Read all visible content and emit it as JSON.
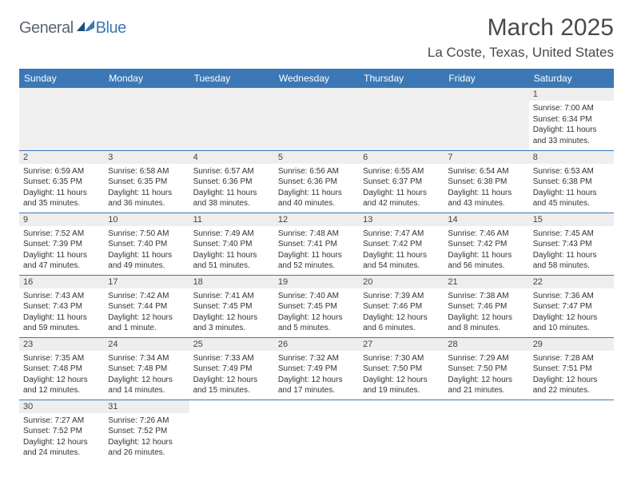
{
  "logo": {
    "text1": "General",
    "text2": "Blue"
  },
  "month_title": "March 2025",
  "location": "La Coste, Texas, United States",
  "day_headers": [
    "Sunday",
    "Monday",
    "Tuesday",
    "Wednesday",
    "Thursday",
    "Friday",
    "Saturday"
  ],
  "colors": {
    "header_bg": "#3b78b5",
    "header_fg": "#ffffff",
    "rule": "#3b78b5",
    "daynum_bg": "#eeeeee"
  },
  "weeks": [
    [
      null,
      null,
      null,
      null,
      null,
      null,
      {
        "n": "1",
        "sr": "Sunrise: 7:00 AM",
        "ss": "Sunset: 6:34 PM",
        "d1": "Daylight: 11 hours",
        "d2": "and 33 minutes."
      }
    ],
    [
      {
        "n": "2",
        "sr": "Sunrise: 6:59 AM",
        "ss": "Sunset: 6:35 PM",
        "d1": "Daylight: 11 hours",
        "d2": "and 35 minutes."
      },
      {
        "n": "3",
        "sr": "Sunrise: 6:58 AM",
        "ss": "Sunset: 6:35 PM",
        "d1": "Daylight: 11 hours",
        "d2": "and 36 minutes."
      },
      {
        "n": "4",
        "sr": "Sunrise: 6:57 AM",
        "ss": "Sunset: 6:36 PM",
        "d1": "Daylight: 11 hours",
        "d2": "and 38 minutes."
      },
      {
        "n": "5",
        "sr": "Sunrise: 6:56 AM",
        "ss": "Sunset: 6:36 PM",
        "d1": "Daylight: 11 hours",
        "d2": "and 40 minutes."
      },
      {
        "n": "6",
        "sr": "Sunrise: 6:55 AM",
        "ss": "Sunset: 6:37 PM",
        "d1": "Daylight: 11 hours",
        "d2": "and 42 minutes."
      },
      {
        "n": "7",
        "sr": "Sunrise: 6:54 AM",
        "ss": "Sunset: 6:38 PM",
        "d1": "Daylight: 11 hours",
        "d2": "and 43 minutes."
      },
      {
        "n": "8",
        "sr": "Sunrise: 6:53 AM",
        "ss": "Sunset: 6:38 PM",
        "d1": "Daylight: 11 hours",
        "d2": "and 45 minutes."
      }
    ],
    [
      {
        "n": "9",
        "sr": "Sunrise: 7:52 AM",
        "ss": "Sunset: 7:39 PM",
        "d1": "Daylight: 11 hours",
        "d2": "and 47 minutes."
      },
      {
        "n": "10",
        "sr": "Sunrise: 7:50 AM",
        "ss": "Sunset: 7:40 PM",
        "d1": "Daylight: 11 hours",
        "d2": "and 49 minutes."
      },
      {
        "n": "11",
        "sr": "Sunrise: 7:49 AM",
        "ss": "Sunset: 7:40 PM",
        "d1": "Daylight: 11 hours",
        "d2": "and 51 minutes."
      },
      {
        "n": "12",
        "sr": "Sunrise: 7:48 AM",
        "ss": "Sunset: 7:41 PM",
        "d1": "Daylight: 11 hours",
        "d2": "and 52 minutes."
      },
      {
        "n": "13",
        "sr": "Sunrise: 7:47 AM",
        "ss": "Sunset: 7:42 PM",
        "d1": "Daylight: 11 hours",
        "d2": "and 54 minutes."
      },
      {
        "n": "14",
        "sr": "Sunrise: 7:46 AM",
        "ss": "Sunset: 7:42 PM",
        "d1": "Daylight: 11 hours",
        "d2": "and 56 minutes."
      },
      {
        "n": "15",
        "sr": "Sunrise: 7:45 AM",
        "ss": "Sunset: 7:43 PM",
        "d1": "Daylight: 11 hours",
        "d2": "and 58 minutes."
      }
    ],
    [
      {
        "n": "16",
        "sr": "Sunrise: 7:43 AM",
        "ss": "Sunset: 7:43 PM",
        "d1": "Daylight: 11 hours",
        "d2": "and 59 minutes."
      },
      {
        "n": "17",
        "sr": "Sunrise: 7:42 AM",
        "ss": "Sunset: 7:44 PM",
        "d1": "Daylight: 12 hours",
        "d2": "and 1 minute."
      },
      {
        "n": "18",
        "sr": "Sunrise: 7:41 AM",
        "ss": "Sunset: 7:45 PM",
        "d1": "Daylight: 12 hours",
        "d2": "and 3 minutes."
      },
      {
        "n": "19",
        "sr": "Sunrise: 7:40 AM",
        "ss": "Sunset: 7:45 PM",
        "d1": "Daylight: 12 hours",
        "d2": "and 5 minutes."
      },
      {
        "n": "20",
        "sr": "Sunrise: 7:39 AM",
        "ss": "Sunset: 7:46 PM",
        "d1": "Daylight: 12 hours",
        "d2": "and 6 minutes."
      },
      {
        "n": "21",
        "sr": "Sunrise: 7:38 AM",
        "ss": "Sunset: 7:46 PM",
        "d1": "Daylight: 12 hours",
        "d2": "and 8 minutes."
      },
      {
        "n": "22",
        "sr": "Sunrise: 7:36 AM",
        "ss": "Sunset: 7:47 PM",
        "d1": "Daylight: 12 hours",
        "d2": "and 10 minutes."
      }
    ],
    [
      {
        "n": "23",
        "sr": "Sunrise: 7:35 AM",
        "ss": "Sunset: 7:48 PM",
        "d1": "Daylight: 12 hours",
        "d2": "and 12 minutes."
      },
      {
        "n": "24",
        "sr": "Sunrise: 7:34 AM",
        "ss": "Sunset: 7:48 PM",
        "d1": "Daylight: 12 hours",
        "d2": "and 14 minutes."
      },
      {
        "n": "25",
        "sr": "Sunrise: 7:33 AM",
        "ss": "Sunset: 7:49 PM",
        "d1": "Daylight: 12 hours",
        "d2": "and 15 minutes."
      },
      {
        "n": "26",
        "sr": "Sunrise: 7:32 AM",
        "ss": "Sunset: 7:49 PM",
        "d1": "Daylight: 12 hours",
        "d2": "and 17 minutes."
      },
      {
        "n": "27",
        "sr": "Sunrise: 7:30 AM",
        "ss": "Sunset: 7:50 PM",
        "d1": "Daylight: 12 hours",
        "d2": "and 19 minutes."
      },
      {
        "n": "28",
        "sr": "Sunrise: 7:29 AM",
        "ss": "Sunset: 7:50 PM",
        "d1": "Daylight: 12 hours",
        "d2": "and 21 minutes."
      },
      {
        "n": "29",
        "sr": "Sunrise: 7:28 AM",
        "ss": "Sunset: 7:51 PM",
        "d1": "Daylight: 12 hours",
        "d2": "and 22 minutes."
      }
    ],
    [
      {
        "n": "30",
        "sr": "Sunrise: 7:27 AM",
        "ss": "Sunset: 7:52 PM",
        "d1": "Daylight: 12 hours",
        "d2": "and 24 minutes."
      },
      {
        "n": "31",
        "sr": "Sunrise: 7:26 AM",
        "ss": "Sunset: 7:52 PM",
        "d1": "Daylight: 12 hours",
        "d2": "and 26 minutes."
      },
      null,
      null,
      null,
      null,
      null
    ]
  ]
}
